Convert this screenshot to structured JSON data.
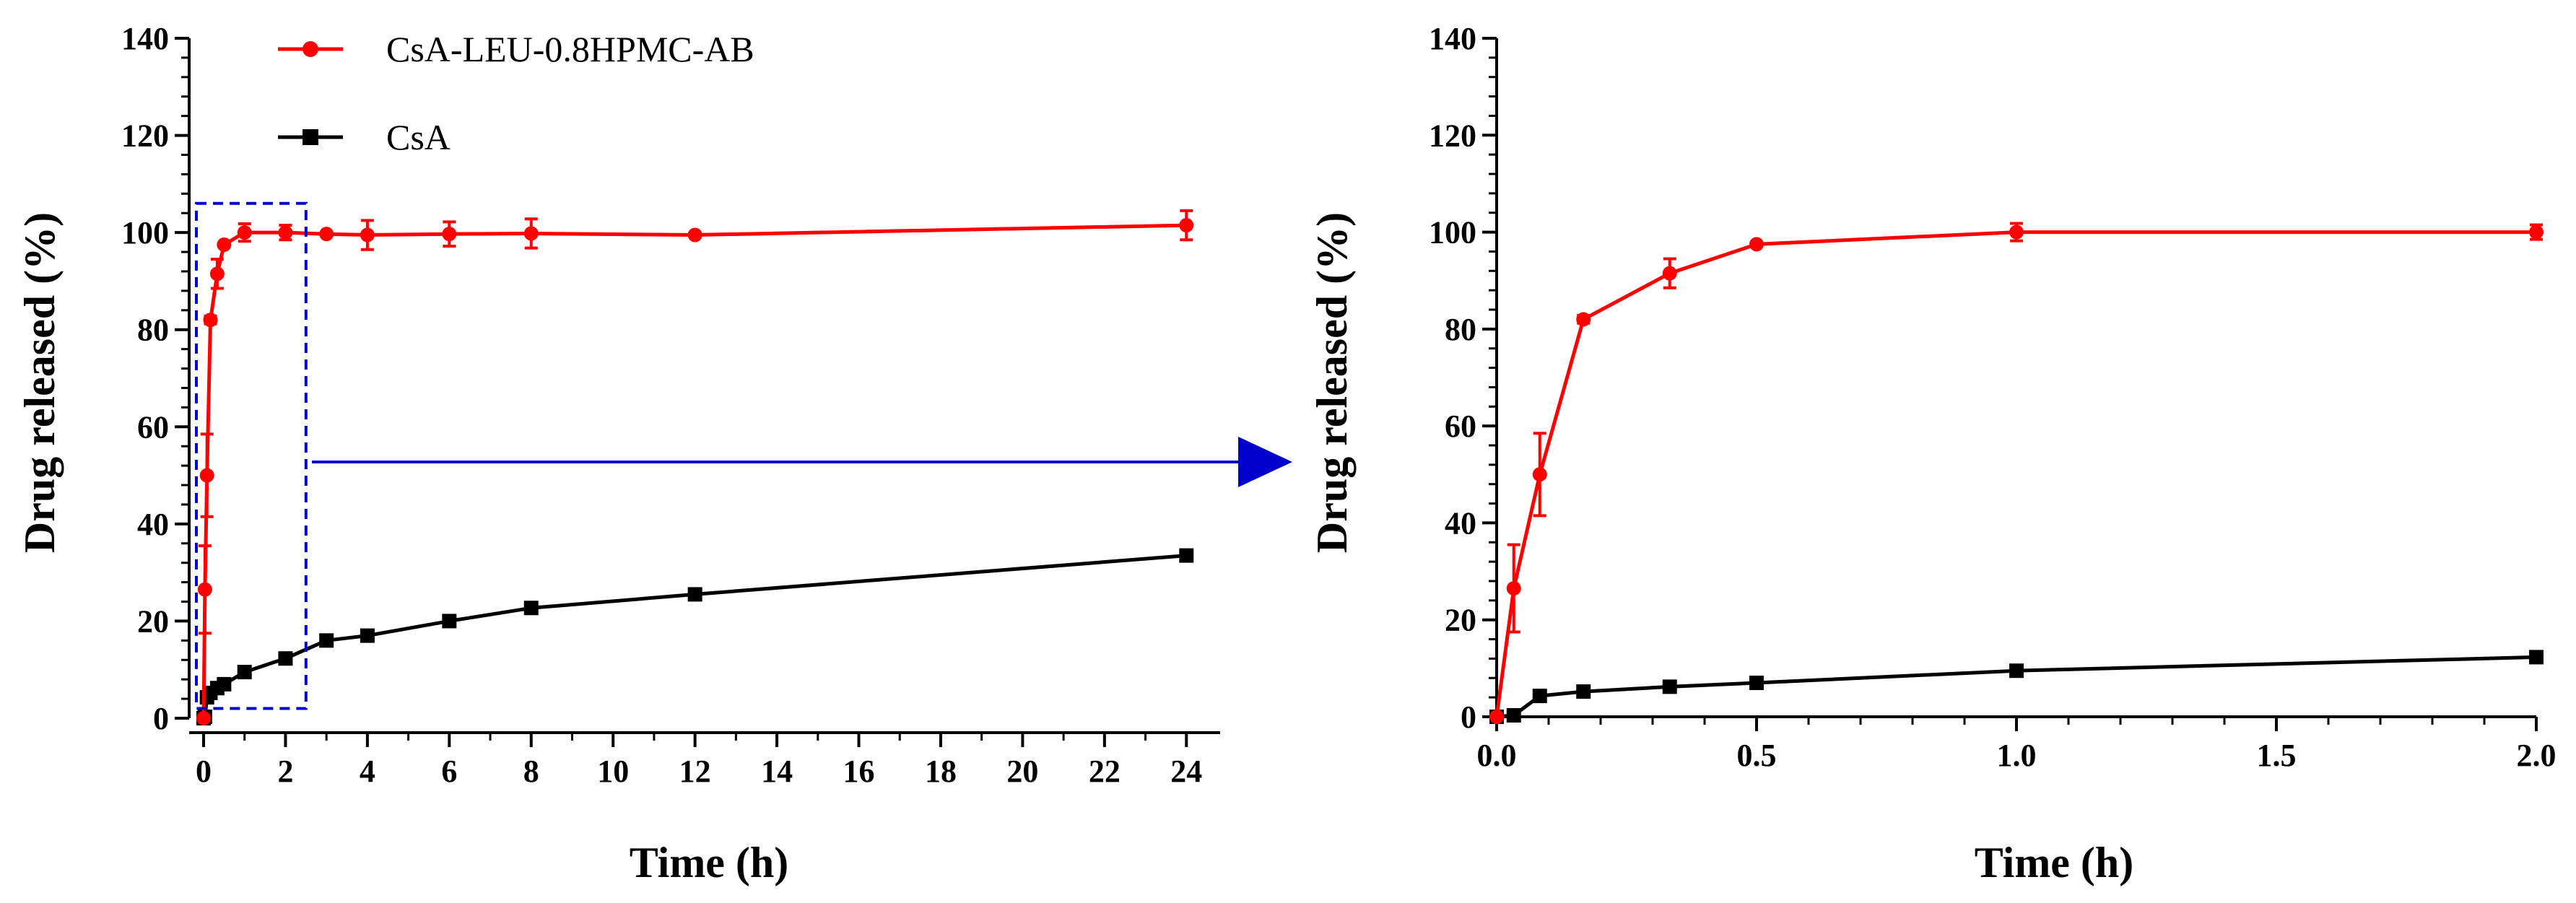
{
  "chart_data": [
    {
      "type": "line",
      "title": "",
      "xlabel": "Time (h)",
      "ylabel": "Drug released (%)",
      "xlim": [
        0,
        25
      ],
      "ylim": [
        0,
        140
      ],
      "xticks": [
        0,
        2,
        4,
        6,
        8,
        10,
        12,
        14,
        16,
        18,
        20,
        22,
        24
      ],
      "yticks": [
        0,
        20,
        40,
        60,
        80,
        100,
        120,
        140
      ],
      "xtick_labels": [
        "0",
        "2",
        "4",
        "6",
        "8",
        "10",
        "12",
        "14",
        "16",
        "18",
        "20",
        "22",
        "24"
      ],
      "ytick_labels": [
        "0",
        "20",
        "40",
        "60",
        "80",
        "100",
        "120",
        "140"
      ],
      "legend_position": "top-left",
      "zoom_box": {
        "x": [
          0,
          2.5
        ],
        "y": [
          2,
          106
        ]
      },
      "series": [
        {
          "name": "CsA-LEU-0.8HPMC-AB",
          "color": "#ff0000",
          "marker": "circle",
          "x": [
            0,
            0.033,
            0.083,
            0.167,
            0.333,
            0.5,
            1,
            2,
            3,
            4,
            6,
            8,
            12,
            24
          ],
          "y": [
            0,
            26.5,
            50,
            82,
            91.5,
            97.5,
            100,
            100,
            99.7,
            99.5,
            99.7,
            99.8,
            99.5,
            101.5
          ],
          "err": [
            0,
            9,
            8.5,
            0.8,
            3,
            0.5,
            1.8,
            1.5,
            0.5,
            3,
            2.5,
            3,
            0.5,
            3
          ]
        },
        {
          "name": "CsA",
          "color": "#000000",
          "marker": "square",
          "x": [
            0,
            0.033,
            0.083,
            0.167,
            0.333,
            0.5,
            1,
            2,
            3,
            4,
            6,
            8,
            12,
            24
          ],
          "y": [
            0,
            0.3,
            4.3,
            5.2,
            6.2,
            7,
            9.5,
            12.3,
            16,
            17,
            20,
            22.7,
            25.5,
            33.5
          ],
          "err": [
            0,
            0.3,
            0.4,
            0.4,
            0.4,
            0.4,
            0.5,
            0.6,
            0.6,
            0.6,
            0.7,
            0.7,
            0.7,
            0.8
          ]
        }
      ]
    },
    {
      "type": "line",
      "title": "",
      "xlabel": "Time (h)",
      "ylabel": "Drug released (%)",
      "xlim": [
        0,
        2
      ],
      "ylim": [
        0,
        140
      ],
      "xticks": [
        0,
        0.5,
        1.0,
        1.5,
        2.0
      ],
      "yticks": [
        0,
        20,
        40,
        60,
        80,
        100,
        120,
        140
      ],
      "xtick_labels": [
        "0.0",
        "0.5",
        "1.0",
        "1.5",
        "2.0"
      ],
      "ytick_labels": [
        "0",
        "20",
        "40",
        "60",
        "80",
        "100",
        "120",
        "140"
      ],
      "series": [
        {
          "name": "CsA-LEU-0.8HPMC-AB",
          "color": "#ff0000",
          "marker": "circle",
          "x": [
            0,
            0.033,
            0.083,
            0.167,
            0.333,
            0.5,
            1,
            2
          ],
          "y": [
            0,
            26.5,
            50,
            82,
            91.5,
            97.5,
            100,
            100
          ],
          "err": [
            0,
            9,
            8.5,
            0.8,
            3,
            0.5,
            1.8,
            1.5
          ]
        },
        {
          "name": "CsA",
          "color": "#000000",
          "marker": "square",
          "x": [
            0,
            0.033,
            0.083,
            0.167,
            0.333,
            0.5,
            1,
            2
          ],
          "y": [
            0,
            0.3,
            4.3,
            5.2,
            6.2,
            7,
            9.5,
            12.3
          ],
          "err": [
            0,
            0.3,
            0.4,
            0.4,
            0.4,
            0.4,
            0.5,
            0.6
          ]
        }
      ]
    }
  ],
  "colors": {
    "zoom_box": "#0000cc",
    "arrow": "#0000cc"
  }
}
